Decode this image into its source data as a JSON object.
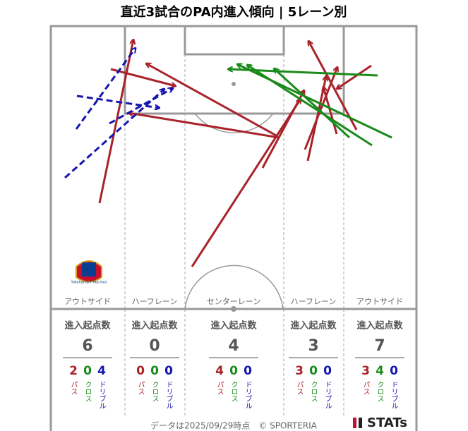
{
  "title": "直近3試合のPA内進入傾向 | 5レーン別",
  "start_label": "進入起点数",
  "type_labels": {
    "pass": "パス",
    "cross": "クロス",
    "dribble": "ドリブル"
  },
  "lanes": [
    {
      "label": "アウトサイド",
      "start": 6,
      "pass": 2,
      "cross": 0,
      "dribble": 4
    },
    {
      "label": "ハーフレーン",
      "start": 0,
      "pass": 0,
      "cross": 0,
      "dribble": 0
    },
    {
      "label": "センターレーン",
      "start": 4,
      "pass": 4,
      "cross": 0,
      "dribble": 0
    },
    {
      "label": "ハーフレーン",
      "start": 3,
      "pass": 3,
      "cross": 0,
      "dribble": 0
    },
    {
      "label": "アウトサイド",
      "start": 7,
      "pass": 3,
      "cross": 4,
      "dribble": 0
    }
  ],
  "crest_text": "Yokohama F·Marinos",
  "footer": "データは2025/09/29時点　© SPORTERIA",
  "logo": "STATs"
}
